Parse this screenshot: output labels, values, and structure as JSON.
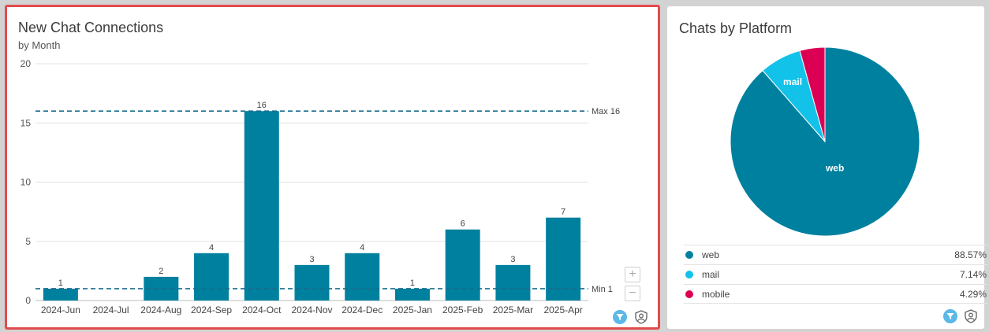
{
  "bar_panel": {
    "title": "New Chat Connections",
    "subtitle": "by Month",
    "zoom_in_label": "+",
    "zoom_out_label": "−",
    "max_label": "Max 16",
    "min_label": "Min 1"
  },
  "pie_panel": {
    "title": "Chats by Platform",
    "legend": [
      {
        "label": "web",
        "value": "88.57%",
        "color": "#00809f"
      },
      {
        "label": "mail",
        "value": "7.14%",
        "color": "#12c2e9"
      },
      {
        "label": "mobile",
        "value": "4.29%",
        "color": "#dc0054"
      }
    ]
  },
  "colors": {
    "bar": "#00809f",
    "reference_line": "#1a6e8e",
    "panel_border_selected": "#e34c4c",
    "filter_icon": "#5bb8e8"
  },
  "icons": [
    "filter-icon",
    "shield-user-icon",
    "zoom-in-icon",
    "zoom-out-icon"
  ],
  "chart_data": [
    {
      "type": "bar",
      "title": "New Chat Connections",
      "subtitle": "by Month",
      "categories": [
        "2024-Jun",
        "2024-Jul",
        "2024-Aug",
        "2024-Sep",
        "2024-Oct",
        "2024-Nov",
        "2024-Dec",
        "2025-Jan",
        "2025-Feb",
        "2025-Mar",
        "2025-Apr"
      ],
      "values": [
        1,
        0,
        2,
        4,
        16,
        3,
        4,
        1,
        6,
        3,
        7
      ],
      "data_labels": [
        "1",
        "",
        "2",
        "4",
        "16",
        "3",
        "4",
        "1",
        "6",
        "3",
        "7"
      ],
      "ylim": [
        0,
        20
      ],
      "yticks": [
        0,
        5,
        10,
        15,
        20
      ],
      "grid": true,
      "reference_lines": [
        {
          "label": "Max 16",
          "value": 16
        },
        {
          "label": "Min 1",
          "value": 1
        }
      ]
    },
    {
      "type": "pie",
      "title": "Chats by Platform",
      "slices": [
        {
          "label": "web",
          "value": 88.57,
          "color": "#00809f",
          "show_label": true
        },
        {
          "label": "mail",
          "value": 7.14,
          "color": "#12c2e9",
          "show_label": true
        },
        {
          "label": "mobile",
          "value": 4.29,
          "color": "#dc0054",
          "show_label": false
        }
      ],
      "legend_position": "bottom"
    }
  ]
}
